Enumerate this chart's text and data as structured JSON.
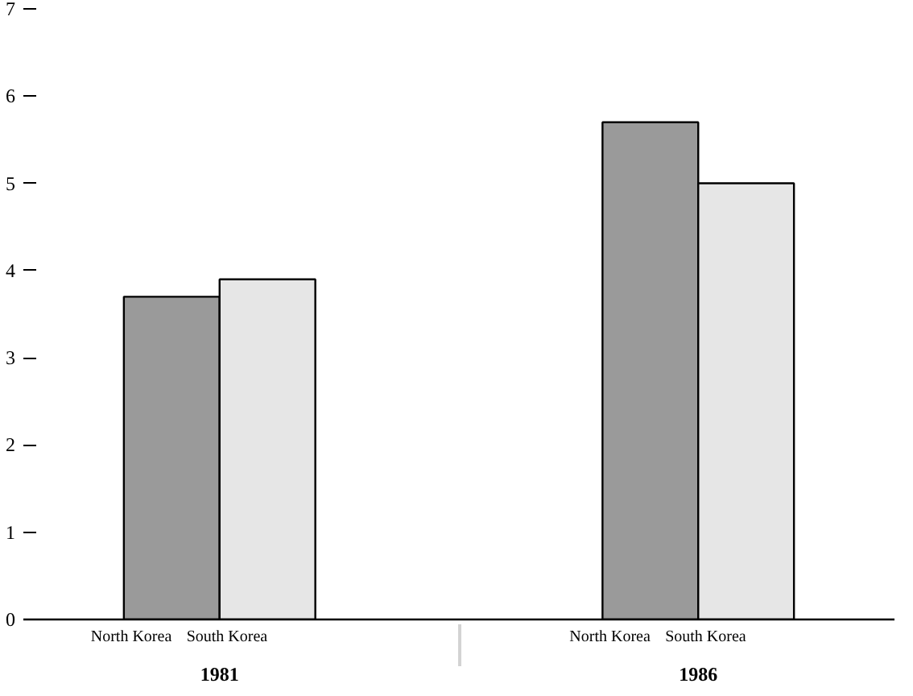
{
  "chart_data": {
    "type": "bar",
    "categories": [
      "1981",
      "1986"
    ],
    "series": [
      {
        "name": "North Korea",
        "color": "#9a9a9a",
        "values": [
          3.7,
          5.7
        ]
      },
      {
        "name": "South Korea",
        "color": "#e6e6e6",
        "values": [
          3.9,
          5.0
        ]
      }
    ],
    "ylim": [
      0,
      7
    ],
    "yticks": [
      0,
      1,
      2,
      3,
      4,
      5,
      6,
      7
    ],
    "grid": false,
    "legend": false
  }
}
